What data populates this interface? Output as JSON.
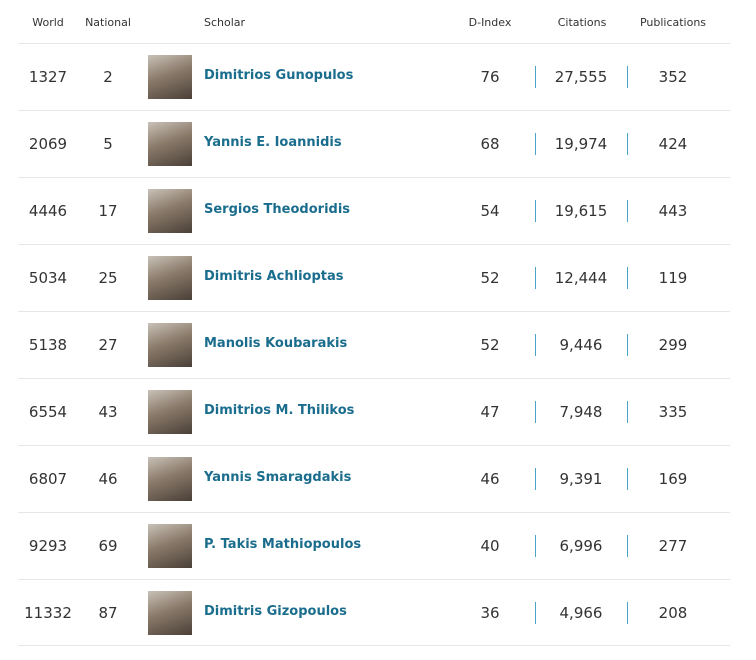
{
  "table": {
    "headers": [
      "World",
      "National",
      "Scholar",
      "D-Index",
      "Citations",
      "Publications"
    ],
    "rows": [
      [
        1327,
        2,
        "Dimitrios Gunopulos",
        76,
        "27,555",
        352
      ],
      [
        2069,
        5,
        "Yannis E. Ioannidis",
        68,
        "19,974",
        424
      ],
      [
        4446,
        17,
        "Sergios Theodoridis",
        54,
        "19,615",
        443
      ],
      [
        5034,
        25,
        "Dimitris Achlioptas",
        52,
        "12,444",
        119
      ],
      [
        5138,
        27,
        "Manolis Koubarakis",
        52,
        "9,446",
        299
      ],
      [
        6554,
        43,
        "Dimitrios M. Thilikos",
        47,
        "7,948",
        335
      ],
      [
        6807,
        46,
        "Yannis Smaragdakis",
        46,
        "9,391",
        169
      ],
      [
        9293,
        69,
        "P. Takis Mathiopoulos",
        40,
        "6,996",
        277
      ],
      [
        11332,
        87,
        "Dimitris Gizopoulos",
        36,
        "4,966",
        208
      ]
    ]
  }
}
